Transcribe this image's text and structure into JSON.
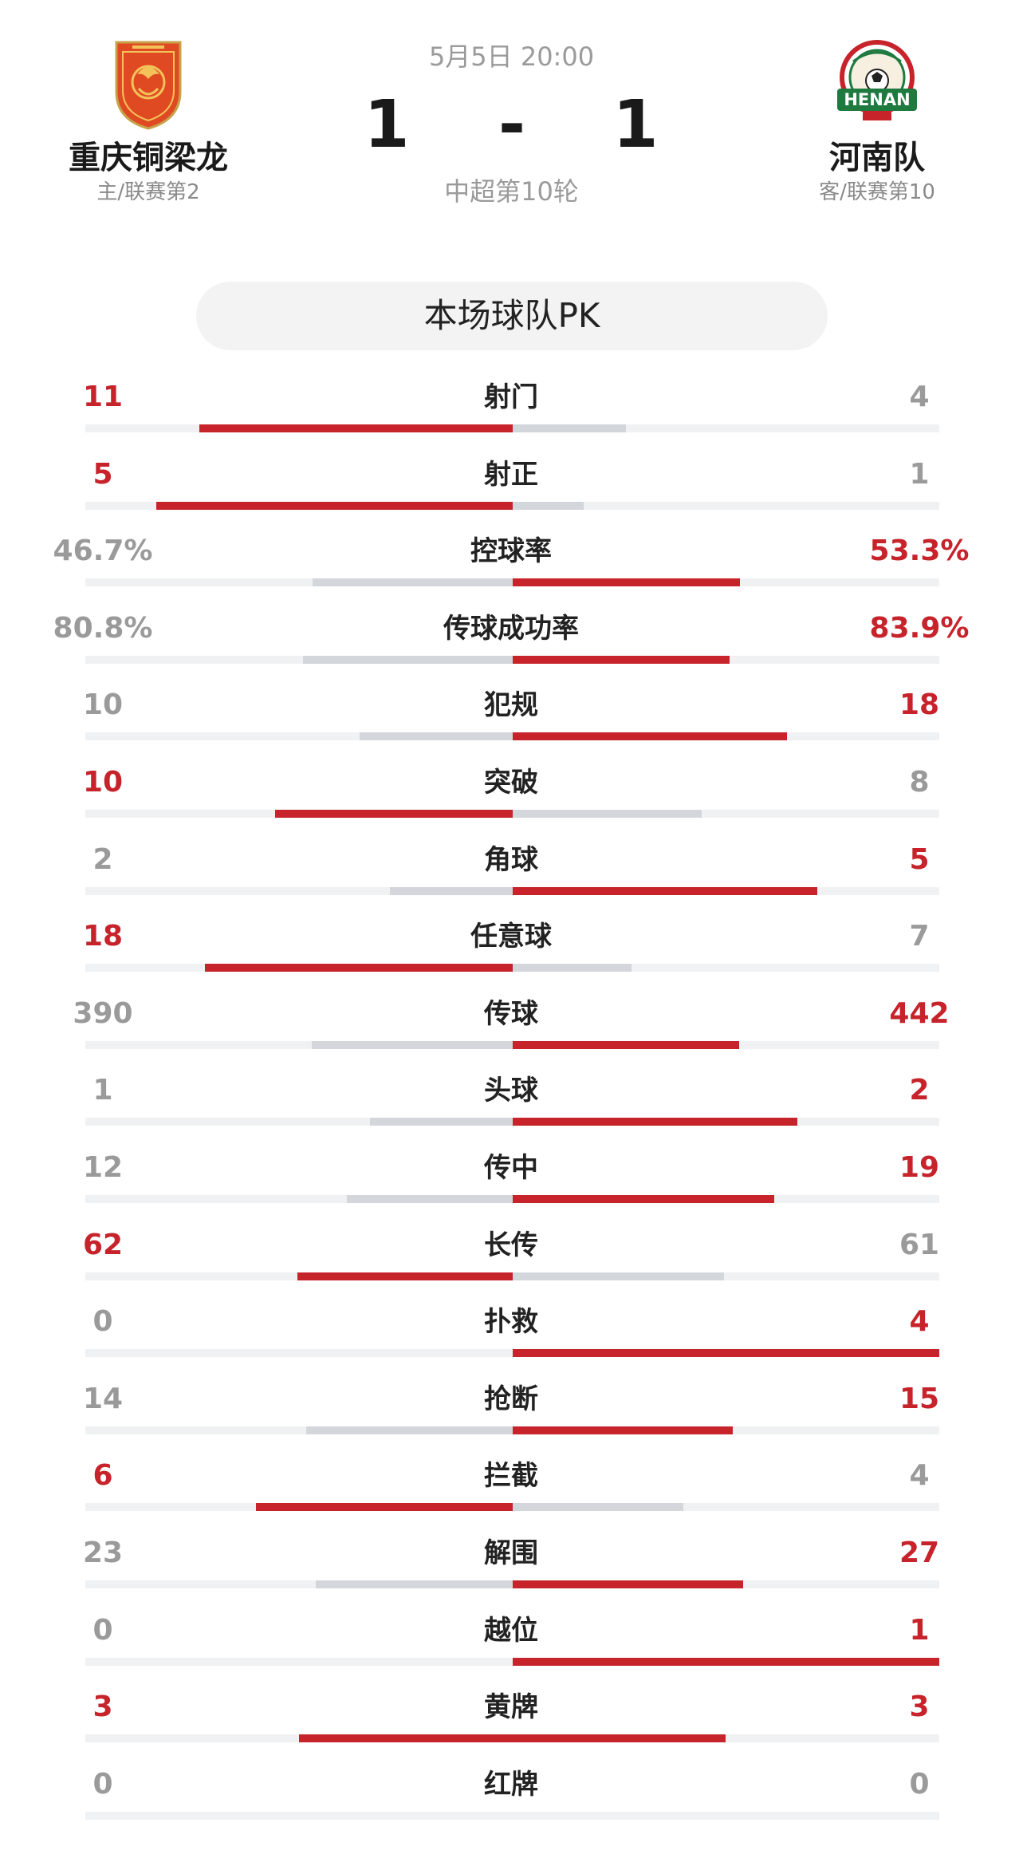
{
  "match": {
    "datetime": "5月5日 20:00",
    "home_score": "1",
    "separator": "-",
    "away_score": "1",
    "round": "中超第10轮"
  },
  "home": {
    "name": "重庆铜梁龙",
    "sub": "主/联赛第2",
    "logo_icon": "chongqing-dragon-crest-icon",
    "logo_color": "#e04a23"
  },
  "away": {
    "name": "河南队",
    "sub": "客/联赛第10",
    "logo_icon": "henan-football-club-crest-icon",
    "logo_color": "#1f7a3f",
    "logo_text": "HENAN"
  },
  "section_title": "本场球队PK",
  "colors": {
    "accent": "#c6232b",
    "neutral": "#d3d6db",
    "track": "#f0f1f3"
  },
  "stats": [
    {
      "label": "射门",
      "home": "11",
      "away": "4",
      "home_ratio": 0.733,
      "away_ratio": 0.267,
      "leader": "home"
    },
    {
      "label": "射正",
      "home": "5",
      "away": "1",
      "home_ratio": 0.833,
      "away_ratio": 0.167,
      "leader": "home"
    },
    {
      "label": "控球率",
      "home": "46.7%",
      "away": "53.3%",
      "home_ratio": 0.467,
      "away_ratio": 0.533,
      "leader": "away"
    },
    {
      "label": "传球成功率",
      "home": "80.8%",
      "away": "83.9%",
      "home_ratio": 0.491,
      "away_ratio": 0.509,
      "leader": "away"
    },
    {
      "label": "犯规",
      "home": "10",
      "away": "18",
      "home_ratio": 0.357,
      "away_ratio": 0.643,
      "leader": "away"
    },
    {
      "label": "突破",
      "home": "10",
      "away": "8",
      "home_ratio": 0.556,
      "away_ratio": 0.444,
      "leader": "home"
    },
    {
      "label": "角球",
      "home": "2",
      "away": "5",
      "home_ratio": 0.286,
      "away_ratio": 0.714,
      "leader": "away"
    },
    {
      "label": "任意球",
      "home": "18",
      "away": "7",
      "home_ratio": 0.72,
      "away_ratio": 0.28,
      "leader": "home"
    },
    {
      "label": "传球",
      "home": "390",
      "away": "442",
      "home_ratio": 0.469,
      "away_ratio": 0.531,
      "leader": "away"
    },
    {
      "label": "头球",
      "home": "1",
      "away": "2",
      "home_ratio": 0.333,
      "away_ratio": 0.667,
      "leader": "away"
    },
    {
      "label": "传中",
      "home": "12",
      "away": "19",
      "home_ratio": 0.387,
      "away_ratio": 0.613,
      "leader": "away"
    },
    {
      "label": "长传",
      "home": "62",
      "away": "61",
      "home_ratio": 0.504,
      "away_ratio": 0.496,
      "leader": "home"
    },
    {
      "label": "扑救",
      "home": "0",
      "away": "4",
      "home_ratio": 0.0,
      "away_ratio": 1.0,
      "leader": "away"
    },
    {
      "label": "抢断",
      "home": "14",
      "away": "15",
      "home_ratio": 0.483,
      "away_ratio": 0.517,
      "leader": "away"
    },
    {
      "label": "拦截",
      "home": "6",
      "away": "4",
      "home_ratio": 0.6,
      "away_ratio": 0.4,
      "leader": "home"
    },
    {
      "label": "解围",
      "home": "23",
      "away": "27",
      "home_ratio": 0.46,
      "away_ratio": 0.54,
      "leader": "away"
    },
    {
      "label": "越位",
      "home": "0",
      "away": "1",
      "home_ratio": 0.0,
      "away_ratio": 1.0,
      "leader": "away"
    },
    {
      "label": "黄牌",
      "home": "3",
      "away": "3",
      "home_ratio": 0.5,
      "away_ratio": 0.5,
      "leader": "both"
    },
    {
      "label": "红牌",
      "home": "0",
      "away": "0",
      "home_ratio": 0.0,
      "away_ratio": 0.0,
      "leader": "none"
    }
  ]
}
